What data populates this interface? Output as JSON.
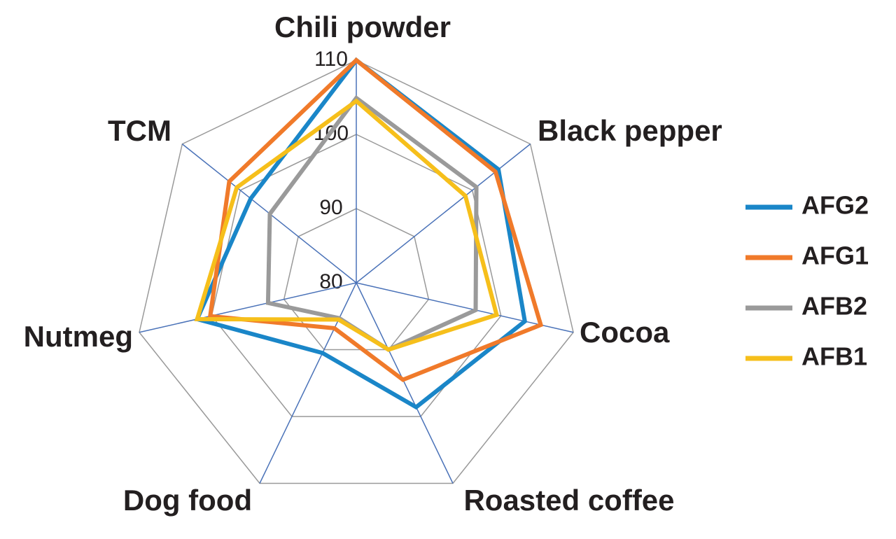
{
  "chart_data": {
    "type": "radar",
    "categories": [
      "Chili powder",
      "Black pepper",
      "Cocoa",
      "Roasted coffee",
      "Dog food",
      "Nutmeg",
      "TCM"
    ],
    "rlim": [
      80,
      110
    ],
    "rticks": [
      80,
      90,
      100,
      110
    ],
    "grid": true,
    "legend": "right",
    "series": [
      {
        "name": "AFG2",
        "color": "#1a86c8",
        "values": [
          110,
          104.5,
          103.3,
          98.6,
          90.5,
          102,
          98.2
        ]
      },
      {
        "name": "AFG1",
        "color": "#f07a2a",
        "values": [
          110,
          104,
          105.5,
          94.5,
          86.8,
          100.2,
          101.9
        ]
      },
      {
        "name": "AFB2",
        "color": "#9a9a9a",
        "values": [
          104.9,
          100.7,
          96.5,
          90,
          85.3,
          92.2,
          94.9
        ]
      },
      {
        "name": "AFB1",
        "color": "#f6bf1b",
        "values": [
          104.5,
          98.8,
          99.4,
          90,
          85.5,
          102,
          100.6
        ]
      }
    ]
  }
}
